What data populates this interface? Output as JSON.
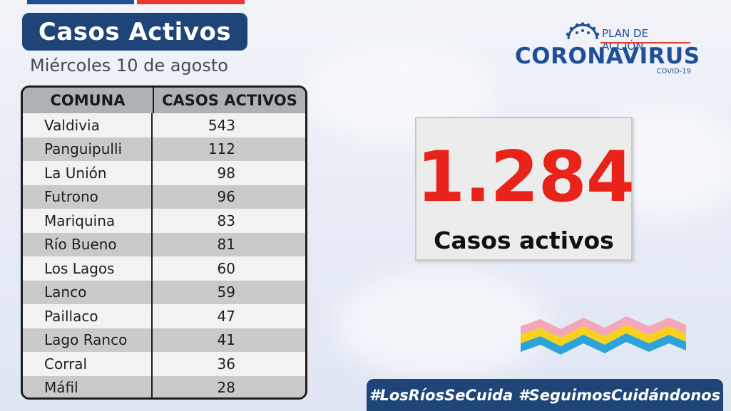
{
  "header": {
    "title": "Casos Activos",
    "date": "Miércoles 10 de agosto"
  },
  "table": {
    "columns": [
      "COMUNA",
      "CASOS ACTIVOS"
    ],
    "rows": [
      {
        "comuna": "Valdivia",
        "casos": "543"
      },
      {
        "comuna": "Panguipulli",
        "casos": "112"
      },
      {
        "comuna": "La Unión",
        "casos": "98"
      },
      {
        "comuna": "Futrono",
        "casos": "96"
      },
      {
        "comuna": "Mariquina",
        "casos": "83"
      },
      {
        "comuna": "Río Bueno",
        "casos": "81"
      },
      {
        "comuna": "Los Lagos",
        "casos": "60"
      },
      {
        "comuna": "Lanco",
        "casos": "59"
      },
      {
        "comuna": "Paillaco",
        "casos": "47"
      },
      {
        "comuna": "Lago Ranco",
        "casos": "41"
      },
      {
        "comuna": "Corral",
        "casos": "36"
      },
      {
        "comuna": "Máfil",
        "casos": "28"
      }
    ]
  },
  "logo": {
    "plan": "PLAN DE ACCIÓN",
    "name": "CORONAVIRUS",
    "sub": "COVID-19"
  },
  "summary": {
    "number": "1.284",
    "label": "Casos activos"
  },
  "hashtags": [
    "#LosRíosSeCuida",
    "#SeguimosCuidándonos"
  ],
  "colors": {
    "navy": "#1f4478",
    "brand_blue": "#1f4f97",
    "red": "#e8231a",
    "wave_pink": "#f4a7b9",
    "wave_yellow": "#f6d21f",
    "wave_blue": "#2ca3d9"
  }
}
